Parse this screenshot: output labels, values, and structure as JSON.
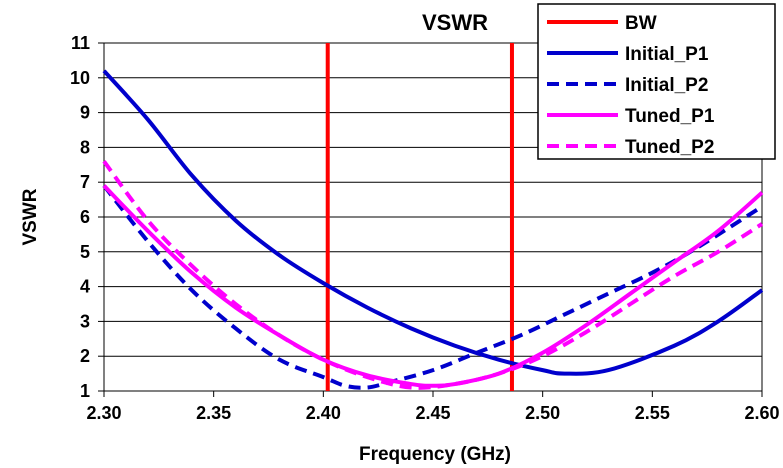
{
  "chart_data": {
    "type": "line",
    "title": "VSWR",
    "xlabel": "Frequency (GHz)",
    "ylabel": "VSWR",
    "xlim": [
      2.3,
      2.6
    ],
    "ylim": [
      1,
      11
    ],
    "x_ticks": [
      "2.30",
      "2.35",
      "2.40",
      "2.45",
      "2.50",
      "2.55",
      "2.60"
    ],
    "y_ticks": [
      "1",
      "2",
      "3",
      "4",
      "5",
      "6",
      "7",
      "8",
      "9",
      "10",
      "11"
    ],
    "grid": "horizontal",
    "legend_position": "top-right",
    "series": [
      {
        "name": "BW",
        "color": "#ff0000",
        "style": "solid",
        "kind": "vertical-lines",
        "x": [
          2.402,
          2.486
        ]
      },
      {
        "name": "Initial_P1",
        "color": "#0000cc",
        "style": "solid",
        "x": [
          2.3,
          2.32,
          2.34,
          2.36,
          2.38,
          2.4,
          2.42,
          2.44,
          2.46,
          2.48,
          2.5,
          2.51,
          2.53,
          2.56,
          2.58,
          2.6
        ],
        "y": [
          10.2,
          8.8,
          7.2,
          5.9,
          4.9,
          4.1,
          3.4,
          2.8,
          2.3,
          1.9,
          1.6,
          1.5,
          1.6,
          2.3,
          3.0,
          3.9
        ]
      },
      {
        "name": "Initial_P2",
        "color": "#0000cc",
        "style": "dashed",
        "x": [
          2.3,
          2.32,
          2.34,
          2.36,
          2.38,
          2.4,
          2.41,
          2.42,
          2.43,
          2.45,
          2.47,
          2.49,
          2.51,
          2.53,
          2.55,
          2.57,
          2.6
        ],
        "y": [
          6.9,
          5.3,
          3.9,
          2.8,
          1.9,
          1.4,
          1.15,
          1.1,
          1.25,
          1.6,
          2.1,
          2.6,
          3.2,
          3.8,
          4.4,
          5.1,
          6.3
        ]
      },
      {
        "name": "Tuned_P1",
        "color": "#ff00ff",
        "style": "solid",
        "x": [
          2.3,
          2.32,
          2.34,
          2.36,
          2.38,
          2.4,
          2.42,
          2.44,
          2.45,
          2.46,
          2.48,
          2.5,
          2.52,
          2.54,
          2.56,
          2.58,
          2.6
        ],
        "y": [
          6.9,
          5.6,
          4.4,
          3.4,
          2.6,
          1.9,
          1.45,
          1.2,
          1.15,
          1.2,
          1.5,
          2.1,
          2.9,
          3.8,
          4.7,
          5.6,
          6.7
        ]
      },
      {
        "name": "Tuned_P2",
        "color": "#ff00ff",
        "style": "dashed",
        "x": [
          2.3,
          2.32,
          2.34,
          2.36,
          2.38,
          2.4,
          2.42,
          2.44,
          2.46,
          2.48,
          2.5,
          2.52,
          2.54,
          2.56,
          2.58,
          2.6
        ],
        "y": [
          7.6,
          5.9,
          4.6,
          3.5,
          2.6,
          1.9,
          1.4,
          1.1,
          1.2,
          1.5,
          2.0,
          2.7,
          3.5,
          4.3,
          5.0,
          5.8
        ]
      }
    ]
  }
}
